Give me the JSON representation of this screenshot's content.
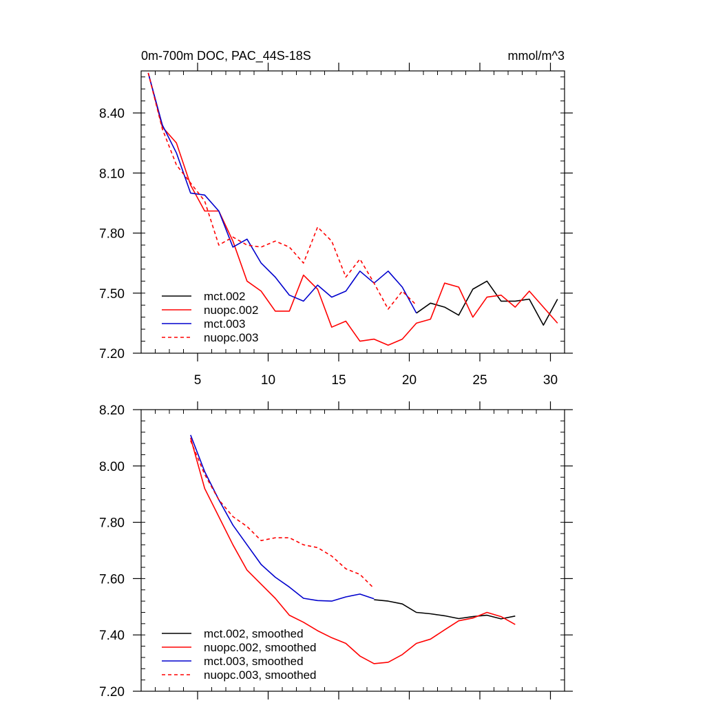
{
  "header": {
    "left_title": "0m-700m DOC, PAC_44S-18S",
    "right_title": "mmol/m^3"
  },
  "chart_data": [
    {
      "type": "line",
      "xlim": [
        1,
        31
      ],
      "ylim": [
        7.2,
        8.61
      ],
      "x_ticks": [
        5,
        10,
        15,
        20,
        25,
        30
      ],
      "x_tick_labels": [
        "5",
        "10",
        "15",
        "20",
        "25",
        "30"
      ],
      "y_ticks": [
        7.2,
        7.5,
        7.8,
        8.1,
        8.4
      ],
      "y_tick_labels": [
        "7.20",
        "7.50",
        "7.80",
        "8.10",
        "8.40"
      ],
      "grid": false,
      "legend_position": "bottom-left",
      "series": [
        {
          "name": "mct.002",
          "color": "#000000",
          "dash": "solid",
          "x": [
            20.5,
            21.5,
            22.5,
            23.5,
            24.5,
            25.5,
            26.5,
            27.5,
            28.5,
            29.5,
            30.5
          ],
          "values": [
            7.4,
            7.45,
            7.43,
            7.39,
            7.52,
            7.56,
            7.46,
            7.46,
            7.47,
            7.34,
            7.47
          ]
        },
        {
          "name": "nuopc.002",
          "color": "#ff0000",
          "dash": "solid",
          "x": [
            1.5,
            2.5,
            3.5,
            4.5,
            5.5,
            6.5,
            7.5,
            8.5,
            9.5,
            10.5,
            11.5,
            12.5,
            13.5,
            14.5,
            15.5,
            16.5,
            17.5,
            18.5,
            19.5,
            20.5,
            21.5,
            22.5,
            23.5,
            24.5,
            25.5,
            26.5,
            27.5,
            28.5,
            29.5,
            30.5
          ],
          "values": [
            8.6,
            8.33,
            8.25,
            8.04,
            7.91,
            7.91,
            7.76,
            7.56,
            7.51,
            7.41,
            7.41,
            7.59,
            7.52,
            7.33,
            7.36,
            7.26,
            7.27,
            7.24,
            7.27,
            7.35,
            7.37,
            7.55,
            7.53,
            7.38,
            7.48,
            7.49,
            7.43,
            7.51,
            7.43,
            7.35
          ]
        },
        {
          "name": "mct.003",
          "color": "#0000cd",
          "dash": "solid",
          "x": [
            1.5,
            2.5,
            3.5,
            4.5,
            5.5,
            6.5,
            7.5,
            8.5,
            9.5,
            10.5,
            11.5,
            12.5,
            13.5,
            14.5,
            15.5,
            16.5,
            17.5,
            18.5,
            19.5,
            20.5
          ],
          "values": [
            8.6,
            8.34,
            8.2,
            8.0,
            7.99,
            7.91,
            7.73,
            7.77,
            7.65,
            7.58,
            7.49,
            7.46,
            7.54,
            7.48,
            7.51,
            7.61,
            7.55,
            7.61,
            7.53,
            7.4
          ]
        },
        {
          "name": "nuopc.003",
          "color": "#ff0000",
          "dash": "dashed",
          "x": [
            1.5,
            2.5,
            3.5,
            4.5,
            5.5,
            6.5,
            7.5,
            8.5,
            9.5,
            10.5,
            11.5,
            12.5,
            13.5,
            14.5,
            15.5,
            16.5,
            17.5,
            18.5,
            19.5,
            20.5
          ],
          "values": [
            8.6,
            8.32,
            8.14,
            8.05,
            7.96,
            7.74,
            7.78,
            7.74,
            7.73,
            7.76,
            7.73,
            7.65,
            7.83,
            7.76,
            7.58,
            7.67,
            7.55,
            7.42,
            7.51,
            7.44
          ]
        }
      ]
    },
    {
      "type": "line",
      "xlim": [
        1,
        31
      ],
      "ylim": [
        7.2,
        8.2
      ],
      "x_ticks": [
        5,
        10,
        15,
        20,
        25,
        30
      ],
      "x_tick_labels": [],
      "y_ticks": [
        7.2,
        7.4,
        7.6,
        7.8,
        8.0,
        8.2
      ],
      "y_tick_labels": [
        "7.20",
        "7.40",
        "7.60",
        "7.80",
        "8.00",
        "8.20"
      ],
      "grid": false,
      "legend_position": "bottom-left",
      "series": [
        {
          "name": "mct.002, smoothed",
          "color": "#000000",
          "dash": "solid",
          "x": [
            17.5,
            18.5,
            19.5,
            20.5,
            21.5,
            22.5,
            23.5,
            24.5,
            25.5,
            26.5,
            27.5
          ],
          "values": [
            7.525,
            7.52,
            7.51,
            7.48,
            7.475,
            7.468,
            7.458,
            7.465,
            7.47,
            7.457,
            7.467
          ]
        },
        {
          "name": "nuopc.002, smoothed",
          "color": "#ff0000",
          "dash": "solid",
          "x": [
            4.5,
            5.5,
            6.5,
            7.5,
            8.5,
            9.5,
            10.5,
            11.5,
            12.5,
            13.5,
            14.5,
            15.5,
            16.5,
            17.5,
            18.5,
            19.5,
            20.5,
            21.5,
            22.5,
            23.5,
            24.5,
            25.5,
            26.5,
            27.5
          ],
          "values": [
            8.1,
            7.92,
            7.82,
            7.72,
            7.63,
            7.58,
            7.53,
            7.47,
            7.445,
            7.415,
            7.39,
            7.37,
            7.325,
            7.298,
            7.303,
            7.33,
            7.37,
            7.385,
            7.418,
            7.45,
            7.46,
            7.48,
            7.465,
            7.437
          ]
        },
        {
          "name": "mct.003, smoothed",
          "color": "#0000cd",
          "dash": "solid",
          "x": [
            4.5,
            5.5,
            6.5,
            7.5,
            8.5,
            9.5,
            10.5,
            11.5,
            12.5,
            13.5,
            14.5,
            15.5,
            16.5,
            17.5
          ],
          "values": [
            8.11,
            7.98,
            7.88,
            7.79,
            7.72,
            7.65,
            7.605,
            7.57,
            7.53,
            7.522,
            7.52,
            7.535,
            7.545,
            7.528
          ]
        },
        {
          "name": "nuopc.003, smoothed",
          "color": "#ff0000",
          "dash": "dashed",
          "x": [
            4.5,
            5.5,
            6.5,
            7.5,
            8.5,
            9.5,
            10.5,
            11.5,
            12.5,
            13.5,
            14.5,
            15.5,
            16.5,
            17.5
          ],
          "values": [
            8.09,
            7.97,
            7.88,
            7.82,
            7.785,
            7.735,
            7.745,
            7.745,
            7.72,
            7.71,
            7.68,
            7.635,
            7.615,
            7.565
          ]
        }
      ]
    }
  ]
}
